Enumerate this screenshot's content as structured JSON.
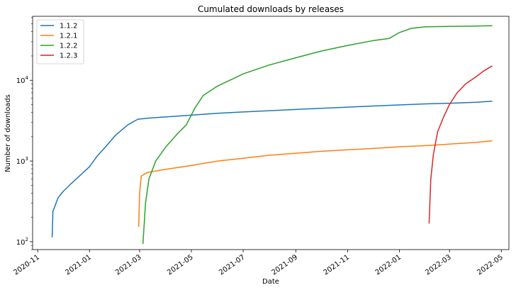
{
  "chart_data": {
    "type": "line",
    "title": "Cumulated downloads by releases",
    "xlabel": "Date",
    "ylabel": "Number of downloads",
    "y_scale": "log",
    "ylim": [
      80,
      62000
    ],
    "xlim": [
      "2020-10-26",
      "2022-05-10"
    ],
    "grid": false,
    "legend_position": "top-left",
    "x_ticks": [
      "2020-11-01",
      "2021-01-01",
      "2021-03-01",
      "2021-05-01",
      "2021-07-01",
      "2021-09-01",
      "2021-11-01",
      "2022-01-01",
      "2022-03-01",
      "2022-05-01"
    ],
    "x_tick_labels": [
      "2020-11",
      "2021-01",
      "2021-03",
      "2021-05",
      "2021-07",
      "2021-09",
      "2021-11",
      "2022-01",
      "2022-03",
      "2022-05"
    ],
    "y_ticks": [
      100,
      1000,
      10000
    ],
    "y_tick_labels": [
      {
        "base": "10",
        "exp": "2"
      },
      {
        "base": "10",
        "exp": "3"
      },
      {
        "base": "10",
        "exp": "4"
      }
    ],
    "series": [
      {
        "name": "1.1.2",
        "color": "#1f77b4",
        "points": [
          [
            "2020-11-18",
            115
          ],
          [
            "2020-11-19",
            240
          ],
          [
            "2020-11-21",
            270
          ],
          [
            "2020-11-25",
            350
          ],
          [
            "2020-12-01",
            420
          ],
          [
            "2020-12-10",
            520
          ],
          [
            "2020-12-20",
            650
          ],
          [
            "2021-01-01",
            850
          ],
          [
            "2021-01-10",
            1150
          ],
          [
            "2021-01-20",
            1500
          ],
          [
            "2021-02-01",
            2100
          ],
          [
            "2021-02-15",
            2800
          ],
          [
            "2021-02-27",
            3300
          ],
          [
            "2021-03-15",
            3420
          ],
          [
            "2021-04-01",
            3520
          ],
          [
            "2021-05-01",
            3700
          ],
          [
            "2021-06-01",
            3900
          ],
          [
            "2021-07-01",
            4050
          ],
          [
            "2021-08-01",
            4200
          ],
          [
            "2021-09-01",
            4350
          ],
          [
            "2021-10-01",
            4500
          ],
          [
            "2021-11-01",
            4650
          ],
          [
            "2021-12-01",
            4800
          ],
          [
            "2022-01-01",
            4950
          ],
          [
            "2022-02-01",
            5100
          ],
          [
            "2022-03-01",
            5200
          ],
          [
            "2022-04-01",
            5350
          ],
          [
            "2022-04-20",
            5500
          ]
        ]
      },
      {
        "name": "1.2.1",
        "color": "#ff7f0e",
        "points": [
          [
            "2021-02-28",
            155
          ],
          [
            "2021-03-01",
            400
          ],
          [
            "2021-03-03",
            650
          ],
          [
            "2021-03-10",
            720
          ],
          [
            "2021-04-01",
            790
          ],
          [
            "2021-05-01",
            880
          ],
          [
            "2021-06-01",
            1000
          ],
          [
            "2021-07-01",
            1080
          ],
          [
            "2021-08-01",
            1180
          ],
          [
            "2021-09-01",
            1250
          ],
          [
            "2021-10-01",
            1320
          ],
          [
            "2021-11-01",
            1380
          ],
          [
            "2021-12-01",
            1430
          ],
          [
            "2022-01-01",
            1500
          ],
          [
            "2022-02-01",
            1550
          ],
          [
            "2022-03-01",
            1620
          ],
          [
            "2022-04-01",
            1700
          ],
          [
            "2022-04-20",
            1780
          ]
        ]
      },
      {
        "name": "1.2.2",
        "color": "#2ca02c",
        "points": [
          [
            "2021-03-05",
            95
          ],
          [
            "2021-03-08",
            300
          ],
          [
            "2021-03-12",
            600
          ],
          [
            "2021-03-20",
            1000
          ],
          [
            "2021-04-01",
            1500
          ],
          [
            "2021-04-15",
            2200
          ],
          [
            "2021-04-25",
            2800
          ],
          [
            "2021-05-05",
            4500
          ],
          [
            "2021-05-15",
            6500
          ],
          [
            "2021-06-01",
            8500
          ],
          [
            "2021-07-01",
            12000
          ],
          [
            "2021-08-01",
            15500
          ],
          [
            "2021-09-01",
            19000
          ],
          [
            "2021-10-01",
            23000
          ],
          [
            "2021-11-01",
            27000
          ],
          [
            "2021-12-01",
            31000
          ],
          [
            "2021-12-20",
            33000
          ],
          [
            "2022-01-01",
            39000
          ],
          [
            "2022-01-15",
            44000
          ],
          [
            "2022-02-01",
            46000
          ],
          [
            "2022-03-01",
            46500
          ],
          [
            "2022-04-01",
            47000
          ],
          [
            "2022-04-20",
            47500
          ]
        ]
      },
      {
        "name": "1.2.3",
        "color": "#d62728",
        "points": [
          [
            "2022-02-05",
            170
          ],
          [
            "2022-02-07",
            600
          ],
          [
            "2022-02-10",
            1200
          ],
          [
            "2022-02-15",
            2300
          ],
          [
            "2022-02-22",
            3500
          ],
          [
            "2022-03-01",
            5000
          ],
          [
            "2022-03-10",
            7000
          ],
          [
            "2022-03-20",
            9000
          ],
          [
            "2022-04-01",
            11000
          ],
          [
            "2022-04-10",
            13000
          ],
          [
            "2022-04-20",
            15000
          ]
        ]
      }
    ]
  }
}
